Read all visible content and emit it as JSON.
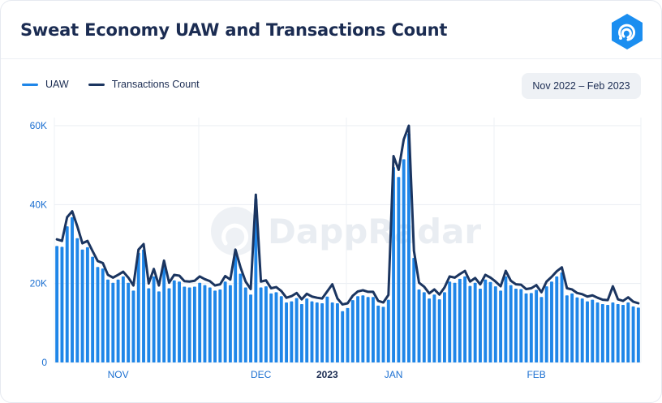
{
  "header": {
    "title": "Sweat Economy UAW and Transactions Count",
    "logo_icon": "dappradar-logo-icon",
    "date_range": "Nov 2022 – Feb 2023"
  },
  "colors": {
    "bar": "#1f86e8",
    "line": "#1b3560",
    "axis_text": "#1b6fd1",
    "title": "#1b2c52"
  },
  "legend": [
    {
      "label": "UAW",
      "color": "#1f86e8"
    },
    {
      "label": "Transactions Count",
      "color": "#1b3560"
    }
  ],
  "watermark": "DappRadar",
  "chart_data": {
    "type": "bar+line",
    "y_ticks": [
      "0",
      "20K",
      "40K",
      "60K"
    ],
    "ylim": [
      0,
      60000
    ],
    "x_labels": [
      {
        "label": "NOV",
        "index": 12,
        "bold": false
      },
      {
        "label": "DEC",
        "index": 40,
        "bold": false
      },
      {
        "label": "2023",
        "index": 53,
        "bold": true
      },
      {
        "label": "JAN",
        "index": 66,
        "bold": false
      },
      {
        "label": "FEB",
        "index": 94,
        "bold": false
      }
    ],
    "grid": true,
    "legend_position": "top-left",
    "series": [
      {
        "name": "UAW",
        "kind": "bar",
        "values": [
          29500,
          29300,
          34500,
          36800,
          31500,
          28600,
          29200,
          26800,
          24200,
          23800,
          21000,
          20200,
          21000,
          21800,
          20200,
          18200,
          27800,
          28600,
          18800,
          21800,
          18000,
          24500,
          18800,
          20800,
          20500,
          19200,
          19000,
          19200,
          20200,
          19600,
          19000,
          18200,
          18500,
          20500,
          19600,
          27200,
          22500,
          19000,
          17200,
          41500,
          19000,
          19300,
          17500,
          17800,
          16800,
          15200,
          15500,
          16300,
          14800,
          16200,
          15500,
          15200,
          15000,
          16700,
          15200,
          15000,
          13000,
          13800,
          15800,
          16800,
          17000,
          16600,
          16600,
          14400,
          14100,
          15900,
          49500,
          47000,
          51500,
          58000,
          26500,
          18500,
          17800,
          16200,
          17200,
          16000,
          17800,
          20500,
          20200,
          21200,
          21800,
          19400,
          20200,
          18700,
          21000,
          20400,
          19300,
          18200,
          21800,
          19600,
          18700,
          18600,
          17500,
          17600,
          18400,
          16600,
          19300,
          20500,
          21800,
          22800,
          17000,
          17500,
          16500,
          16200,
          15500,
          15900,
          15200,
          14800,
          14600,
          15200,
          14800,
          14600,
          15200,
          14200,
          13900
        ]
      },
      {
        "name": "Transactions Count",
        "kind": "line",
        "values": [
          31200,
          30800,
          36800,
          38300,
          34500,
          30200,
          30800,
          28200,
          25700,
          25200,
          22200,
          21500,
          22200,
          23000,
          21500,
          19500,
          28600,
          30000,
          20000,
          23700,
          19500,
          25800,
          20200,
          22200,
          22000,
          20600,
          20500,
          20700,
          21800,
          21100,
          20600,
          19500,
          19800,
          21900,
          21000,
          28600,
          24100,
          20500,
          18600,
          42500,
          20500,
          20800,
          18800,
          19100,
          18100,
          16400,
          16800,
          17600,
          16000,
          17400,
          16700,
          16400,
          16200,
          18000,
          19800,
          16200,
          14700,
          15000,
          16900,
          18000,
          18300,
          17900,
          17900,
          15600,
          15200,
          17100,
          52300,
          48800,
          56500,
          60000,
          28300,
          20200,
          19200,
          17500,
          18500,
          17200,
          19000,
          21800,
          21500,
          22400,
          23200,
          20500,
          21400,
          19800,
          22200,
          21500,
          20500,
          19300,
          23200,
          20700,
          19800,
          19700,
          18600,
          18800,
          19600,
          17800,
          20500,
          21700,
          23100,
          24100,
          18800,
          18500,
          17600,
          17300,
          16700,
          17000,
          16400,
          15900,
          15800,
          19300,
          16000,
          15600,
          16500,
          15400,
          15000
        ]
      }
    ]
  }
}
